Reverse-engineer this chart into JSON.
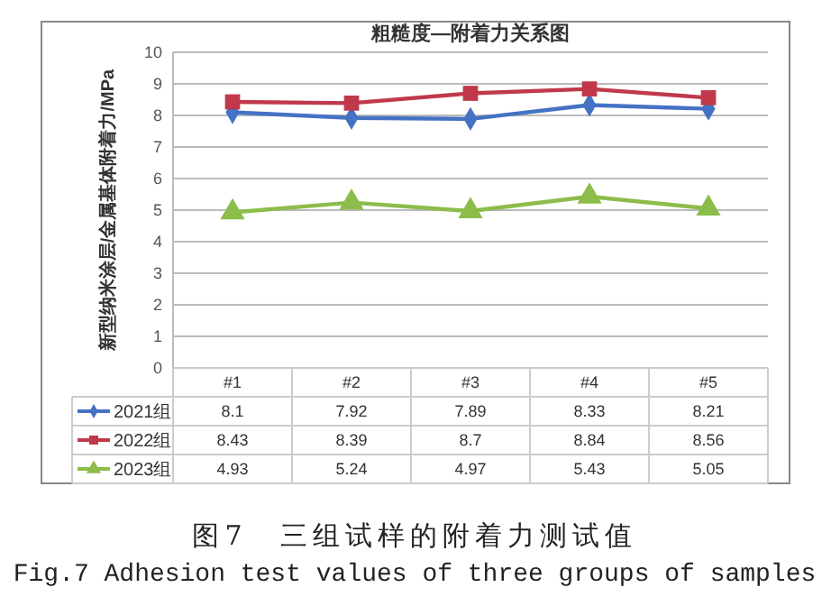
{
  "chart_data": {
    "type": "line",
    "title": "粗糙度—附着力关系图",
    "ylabel": "新型纳米涂层/金属基体附着力/MPa",
    "categories": [
      "#1",
      "#2",
      "#3",
      "#4",
      "#5"
    ],
    "series": [
      {
        "name": "2021组",
        "color": "#4472c4",
        "marker": "diamond",
        "values": [
          8.1,
          7.92,
          7.89,
          8.33,
          8.21
        ]
      },
      {
        "name": "2022组",
        "color": "#c0394b",
        "marker": "square",
        "values": [
          8.43,
          8.39,
          8.7,
          8.84,
          8.56
        ]
      },
      {
        "name": "2023组",
        "color": "#8cbc4a",
        "marker": "triangle",
        "values": [
          4.93,
          5.24,
          4.97,
          5.43,
          5.05
        ]
      }
    ],
    "ylim": [
      0,
      10
    ],
    "yticks": [
      0,
      1,
      2,
      3,
      4,
      5,
      6,
      7,
      8,
      9,
      10
    ],
    "grid": "y",
    "legend": "bottom",
    "data_labels": true,
    "annotations": [
      "图7　三组试样的附着力测试值",
      "Fig.7 Adhesion test values of three groups of samples"
    ]
  }
}
